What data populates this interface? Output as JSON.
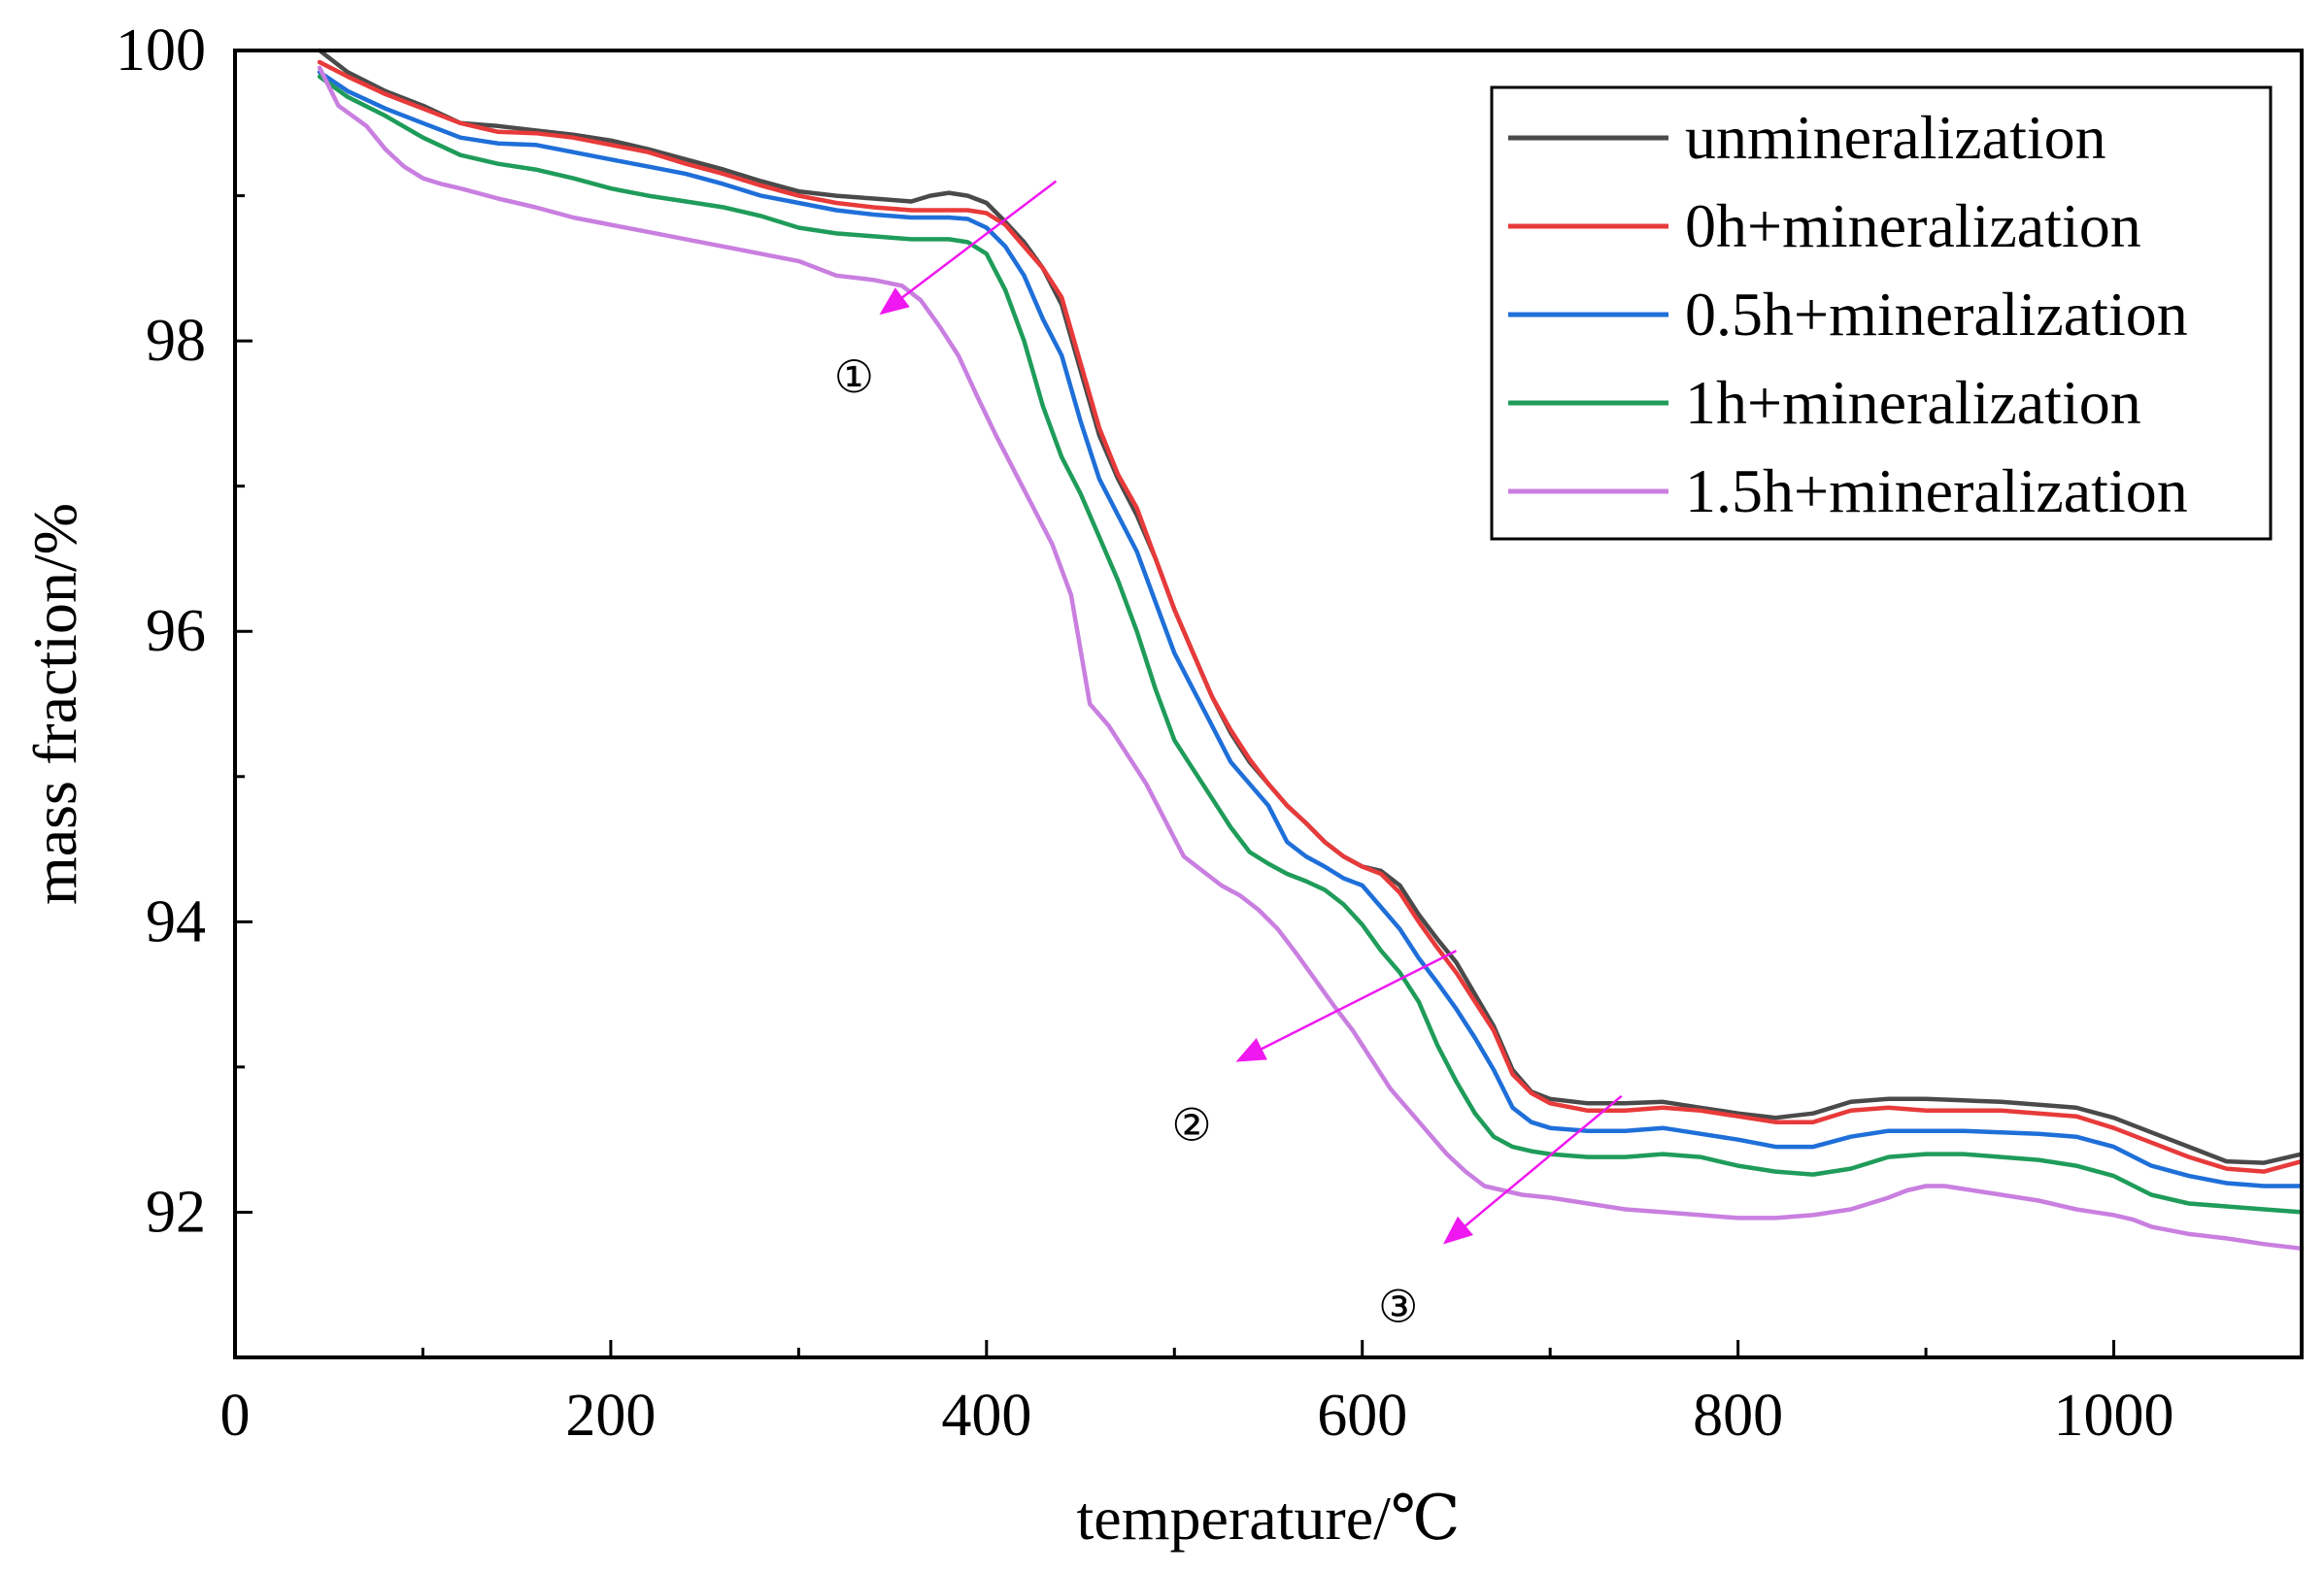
{
  "chart_data": {
    "type": "line",
    "title": "",
    "xlabel": "temperature/℃",
    "ylabel": "mass fraction/%",
    "xlim": [
      0,
      1100
    ],
    "ylim": [
      91,
      100
    ],
    "x_ticks": [
      0,
      200,
      400,
      600,
      800,
      1000
    ],
    "y_ticks": [
      92,
      94,
      96,
      98,
      100
    ],
    "x_tick_labels": [
      "0",
      "200",
      "400",
      "600",
      "800",
      "1000"
    ],
    "y_tick_labels": [
      "92",
      "94",
      "96",
      "98",
      "100"
    ],
    "grid": false,
    "legend_position": "top-right",
    "series": [
      {
        "name": "unmineralization",
        "color": "#4a4a4a",
        "x": [
          45,
          60,
          80,
          100,
          120,
          140,
          160,
          180,
          200,
          220,
          240,
          260,
          280,
          300,
          320,
          340,
          360,
          370,
          380,
          390,
          400,
          410,
          420,
          430,
          440,
          450,
          460,
          470,
          480,
          490,
          500,
          510,
          520,
          530,
          540,
          550,
          560,
          570,
          580,
          590,
          600,
          610,
          620,
          630,
          640,
          650,
          660,
          670,
          680,
          690,
          700,
          720,
          740,
          760,
          780,
          800,
          820,
          840,
          860,
          880,
          900,
          920,
          940,
          960,
          980,
          1000,
          1020,
          1040,
          1060,
          1080,
          1100
        ],
        "values": [
          100,
          99.85,
          99.72,
          99.62,
          99.5,
          99.48,
          99.45,
          99.42,
          99.38,
          99.32,
          99.25,
          99.18,
          99.1,
          99.03,
          99.0,
          98.98,
          98.96,
          99.0,
          99.02,
          99.0,
          98.95,
          98.82,
          98.68,
          98.5,
          98.25,
          97.8,
          97.35,
          97.05,
          96.8,
          96.5,
          96.15,
          95.85,
          95.55,
          95.3,
          95.1,
          94.95,
          94.8,
          94.68,
          94.55,
          94.45,
          94.38,
          94.35,
          94.25,
          94.05,
          93.88,
          93.72,
          93.5,
          93.28,
          92.98,
          92.83,
          92.78,
          92.75,
          92.75,
          92.76,
          92.72,
          92.68,
          92.65,
          92.68,
          92.76,
          92.78,
          92.78,
          92.77,
          92.76,
          92.74,
          92.72,
          92.65,
          92.55,
          92.45,
          92.35,
          92.34,
          92.4
        ]
      },
      {
        "name": "0h+mineralization",
        "color": "#e83a3a",
        "x": [
          45,
          60,
          80,
          100,
          120,
          140,
          160,
          180,
          200,
          220,
          240,
          260,
          280,
          300,
          320,
          340,
          360,
          370,
          380,
          390,
          400,
          410,
          420,
          430,
          440,
          450,
          460,
          470,
          480,
          490,
          500,
          510,
          520,
          530,
          540,
          550,
          560,
          570,
          580,
          590,
          600,
          610,
          620,
          630,
          640,
          650,
          660,
          670,
          680,
          690,
          700,
          720,
          740,
          760,
          780,
          800,
          820,
          840,
          860,
          880,
          900,
          920,
          940,
          960,
          980,
          1000,
          1020,
          1040,
          1060,
          1080,
          1100
        ],
        "values": [
          99.92,
          99.82,
          99.7,
          99.6,
          99.5,
          99.44,
          99.43,
          99.4,
          99.35,
          99.3,
          99.22,
          99.15,
          99.07,
          99.0,
          98.95,
          98.92,
          98.9,
          98.9,
          98.9,
          98.9,
          98.88,
          98.8,
          98.65,
          98.5,
          98.3,
          97.85,
          97.4,
          97.08,
          96.85,
          96.5,
          96.15,
          95.85,
          95.55,
          95.32,
          95.12,
          94.95,
          94.8,
          94.68,
          94.55,
          94.45,
          94.38,
          94.33,
          94.2,
          94.0,
          93.82,
          93.65,
          93.45,
          93.25,
          92.95,
          92.82,
          92.75,
          92.7,
          92.7,
          92.72,
          92.7,
          92.66,
          92.62,
          92.62,
          92.7,
          92.72,
          92.7,
          92.7,
          92.7,
          92.68,
          92.66,
          92.58,
          92.48,
          92.38,
          92.3,
          92.28,
          92.35
        ]
      },
      {
        "name": "0.5h+mineralization",
        "color": "#1f6fd9",
        "x": [
          45,
          60,
          80,
          100,
          120,
          140,
          160,
          180,
          200,
          220,
          240,
          260,
          280,
          300,
          320,
          340,
          360,
          370,
          380,
          390,
          400,
          410,
          420,
          430,
          440,
          450,
          460,
          470,
          480,
          490,
          500,
          510,
          520,
          530,
          540,
          550,
          560,
          570,
          580,
          590,
          600,
          610,
          620,
          630,
          640,
          650,
          660,
          670,
          680,
          690,
          700,
          720,
          740,
          760,
          780,
          800,
          820,
          840,
          860,
          880,
          900,
          920,
          940,
          960,
          980,
          1000,
          1020,
          1040,
          1060,
          1080,
          1100
        ],
        "values": [
          99.85,
          99.72,
          99.6,
          99.5,
          99.4,
          99.36,
          99.35,
          99.3,
          99.25,
          99.2,
          99.15,
          99.08,
          99.0,
          98.95,
          98.9,
          98.87,
          98.85,
          98.85,
          98.85,
          98.84,
          98.78,
          98.65,
          98.45,
          98.15,
          97.9,
          97.45,
          97.05,
          96.8,
          96.55,
          96.2,
          95.85,
          95.6,
          95.35,
          95.1,
          94.95,
          94.8,
          94.55,
          94.45,
          94.38,
          94.3,
          94.25,
          94.1,
          93.95,
          93.75,
          93.58,
          93.4,
          93.2,
          92.98,
          92.72,
          92.62,
          92.58,
          92.56,
          92.56,
          92.58,
          92.54,
          92.5,
          92.45,
          92.45,
          92.52,
          92.56,
          92.56,
          92.56,
          92.55,
          92.54,
          92.52,
          92.45,
          92.32,
          92.25,
          92.2,
          92.18,
          92.18
        ]
      },
      {
        "name": "1h+mineralization",
        "color": "#1f9c5a",
        "x": [
          45,
          60,
          80,
          100,
          120,
          140,
          160,
          180,
          200,
          220,
          240,
          260,
          280,
          300,
          320,
          340,
          360,
          370,
          380,
          390,
          400,
          410,
          420,
          430,
          440,
          450,
          460,
          470,
          480,
          490,
          500,
          510,
          520,
          530,
          540,
          550,
          560,
          570,
          580,
          590,
          600,
          610,
          620,
          630,
          640,
          650,
          660,
          670,
          680,
          690,
          700,
          720,
          740,
          760,
          780,
          800,
          820,
          840,
          860,
          880,
          900,
          920,
          940,
          960,
          980,
          1000,
          1020,
          1040,
          1060,
          1080,
          1100
        ],
        "values": [
          99.82,
          99.68,
          99.55,
          99.4,
          99.28,
          99.22,
          99.18,
          99.12,
          99.05,
          99.0,
          98.96,
          98.92,
          98.86,
          98.78,
          98.74,
          98.72,
          98.7,
          98.7,
          98.7,
          98.68,
          98.6,
          98.35,
          98.0,
          97.55,
          97.2,
          96.95,
          96.65,
          96.35,
          96.0,
          95.6,
          95.25,
          95.05,
          94.85,
          94.65,
          94.48,
          94.4,
          94.33,
          94.28,
          94.22,
          94.12,
          93.98,
          93.8,
          93.65,
          93.45,
          93.15,
          92.9,
          92.68,
          92.52,
          92.45,
          92.42,
          92.4,
          92.38,
          92.38,
          92.4,
          92.38,
          92.32,
          92.28,
          92.26,
          92.3,
          92.38,
          92.4,
          92.4,
          92.38,
          92.36,
          92.32,
          92.25,
          92.12,
          92.06,
          92.04,
          92.02,
          92.0
        ]
      },
      {
        "name": "1.5h+mineralization",
        "color": "#c97fe0",
        "x": [
          45,
          55,
          70,
          80,
          90,
          100,
          110,
          120,
          140,
          160,
          180,
          200,
          220,
          240,
          260,
          280,
          300,
          320,
          340,
          355,
          365,
          375,
          385,
          395,
          405,
          415,
          425,
          435,
          445,
          455,
          465,
          475,
          485,
          495,
          505,
          515,
          525,
          535,
          545,
          555,
          565,
          575,
          585,
          595,
          605,
          615,
          625,
          635,
          645,
          655,
          665,
          675,
          685,
          700,
          720,
          740,
          760,
          780,
          800,
          820,
          840,
          860,
          880,
          890,
          900,
          910,
          920,
          940,
          960,
          980,
          1000,
          1010,
          1020,
          1040,
          1060,
          1080,
          1100
        ],
        "values": [
          99.88,
          99.62,
          99.48,
          99.32,
          99.2,
          99.12,
          99.08,
          99.05,
          98.98,
          98.92,
          98.85,
          98.8,
          98.75,
          98.7,
          98.65,
          98.6,
          98.55,
          98.45,
          98.42,
          98.38,
          98.28,
          98.1,
          97.9,
          97.62,
          97.35,
          97.1,
          96.85,
          96.6,
          96.25,
          95.5,
          95.35,
          95.15,
          94.95,
          94.7,
          94.45,
          94.35,
          94.25,
          94.18,
          94.08,
          93.95,
          93.78,
          93.6,
          93.42,
          93.25,
          93.05,
          92.85,
          92.7,
          92.55,
          92.4,
          92.28,
          92.18,
          92.15,
          92.12,
          92.1,
          92.06,
          92.02,
          92.0,
          91.98,
          91.96,
          91.96,
          91.98,
          92.02,
          92.1,
          92.15,
          92.18,
          92.18,
          92.16,
          92.12,
          92.08,
          92.02,
          91.98,
          91.95,
          91.9,
          91.85,
          91.82,
          91.78,
          91.75
        ]
      }
    ],
    "annotations": [
      {
        "label": "①",
        "arrow_from": [
          437,
          99.1
        ],
        "arrow_to": [
          345,
          98.2
        ]
      },
      {
        "label": "②",
        "arrow_from": [
          650,
          93.8
        ],
        "arrow_to": [
          535,
          93.05
        ]
      },
      {
        "label": "③",
        "arrow_from": [
          738,
          92.8
        ],
        "arrow_to": [
          645,
          91.8
        ]
      }
    ]
  }
}
